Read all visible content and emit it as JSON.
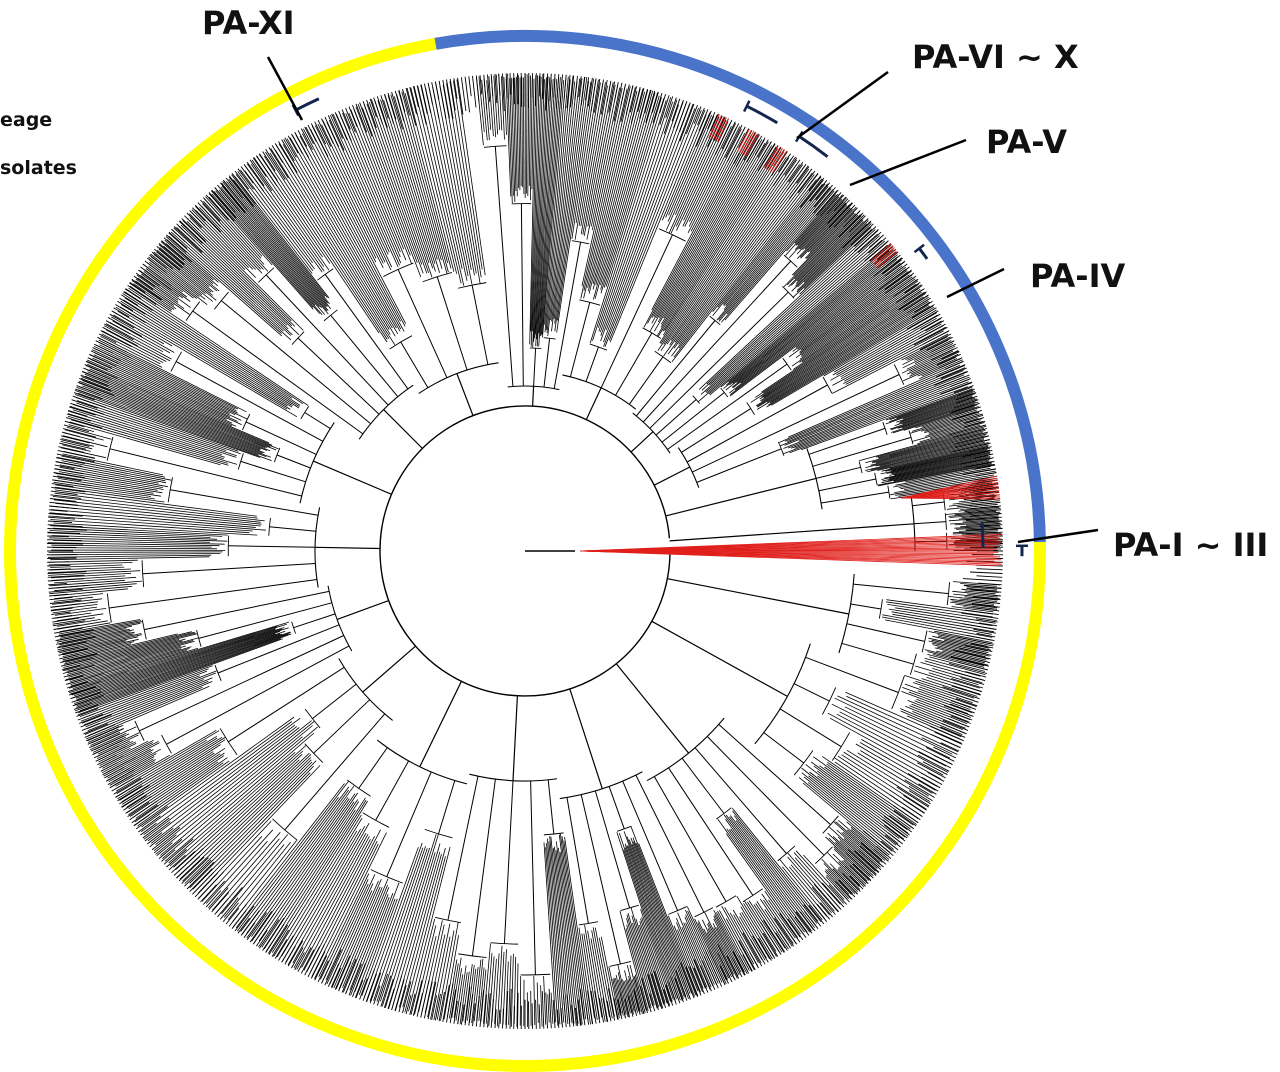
{
  "legend": {
    "entries": [
      {
        "text": "eage"
      },
      {
        "text": "solates"
      }
    ]
  },
  "clades": [
    {
      "label": "PA-XI"
    },
    {
      "label": "PA-VI ~ X"
    },
    {
      "label": "PA-V"
    },
    {
      "label": "PA-IV"
    },
    {
      "label": "PA-I ~ III"
    }
  ],
  "ring": {
    "lineage_color": "#4a74c9",
    "other_color": "#ffff00"
  },
  "colors": {
    "branch": "#000000",
    "highlight": "#e0201c",
    "marker": "#12264f"
  }
}
